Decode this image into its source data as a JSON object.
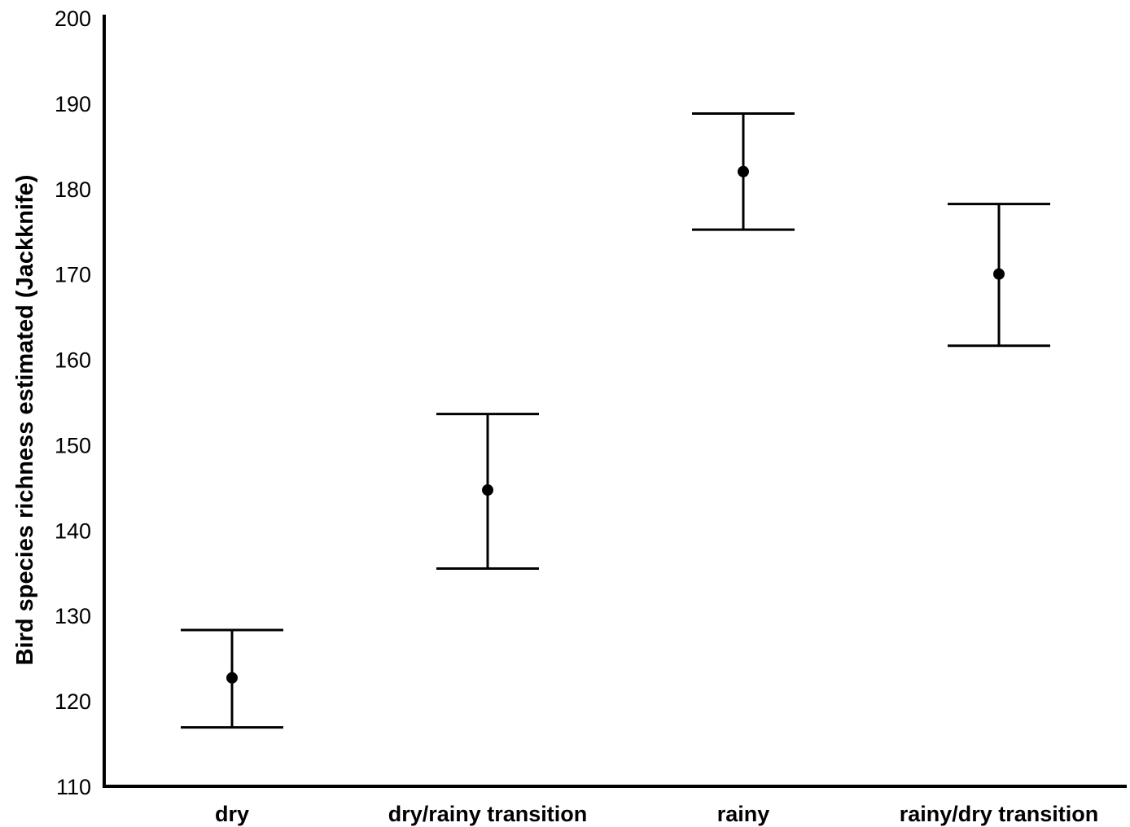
{
  "chart_data": {
    "type": "scatter",
    "title": "",
    "xlabel": "",
    "ylabel": "Bird species richness estimated (Jackknife)",
    "categories": [
      "dry",
      "dry/rainy transition",
      "rainy",
      "rainy/dry transition"
    ],
    "series": [
      {
        "values": [
          122.7,
          144.7,
          182.0,
          170.0
        ],
        "error_lower": [
          116.9,
          135.5,
          175.2,
          161.6
        ],
        "error_upper": [
          128.3,
          153.6,
          188.8,
          178.2
        ]
      }
    ],
    "ylim": [
      110,
      200
    ],
    "yticks": [
      110,
      120,
      130,
      140,
      150,
      160,
      170,
      180,
      190,
      200
    ],
    "grid": false,
    "legend": "none",
    "colors": {
      "marks": "#000000",
      "axis": "#000000"
    }
  }
}
